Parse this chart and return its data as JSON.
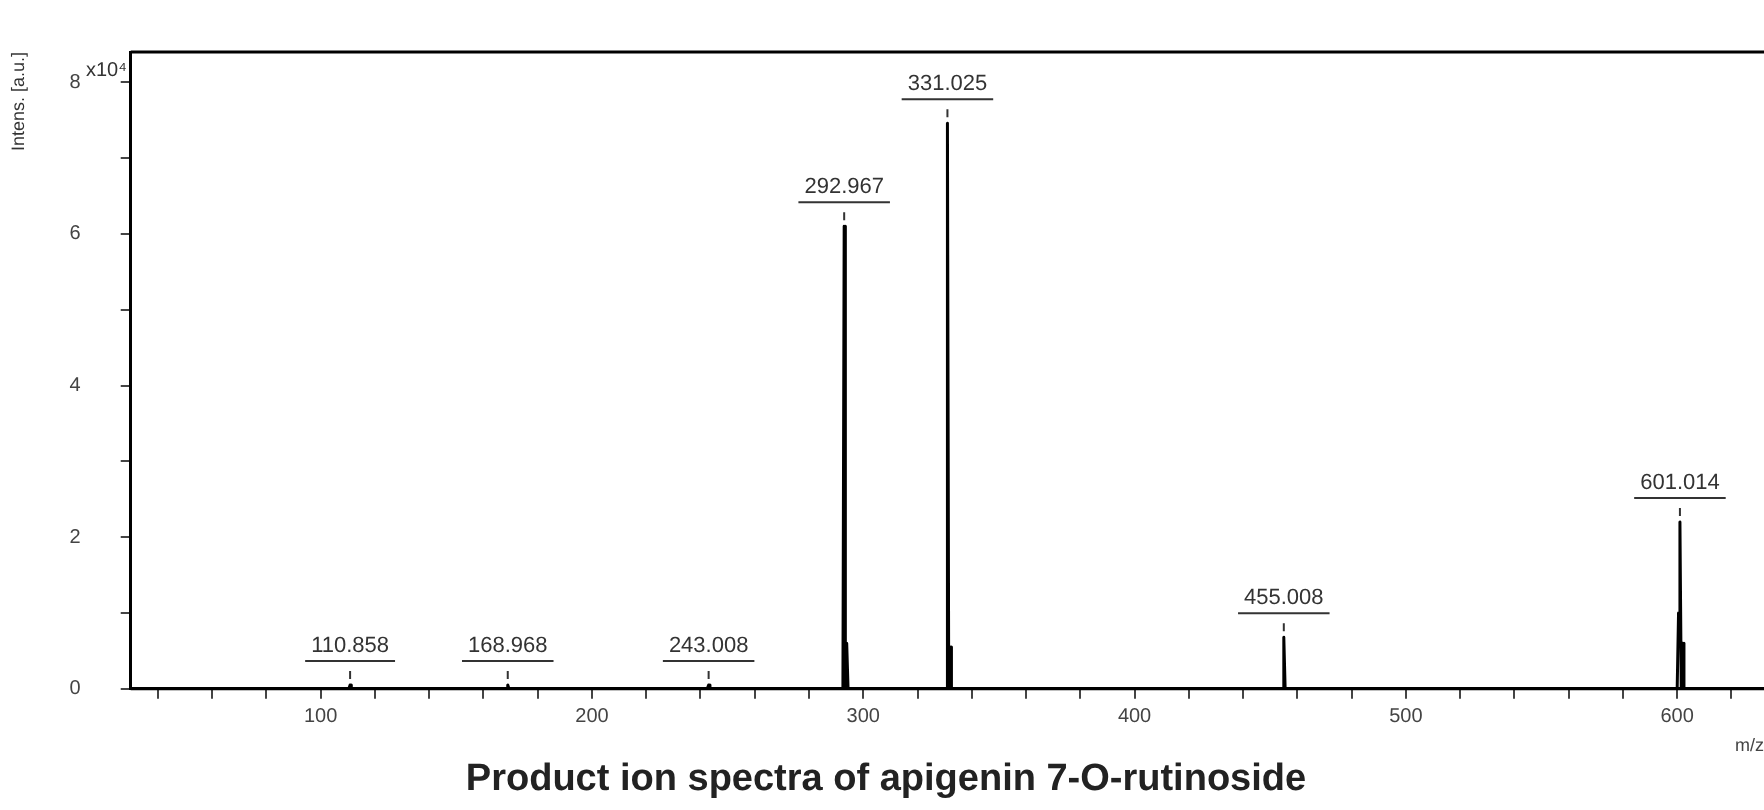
{
  "chart_data": {
    "type": "line",
    "title": "Product ion spectra of apigenin 7-O-rutinoside",
    "xlabel": "m/z",
    "ylabel": "Intens. [a.u.]",
    "x": [
      30,
      110.4,
      110.858,
      111.3,
      168.5,
      168.968,
      169.4,
      242.5,
      243.008,
      243.5,
      292.5,
      292.967,
      293.4,
      293.9,
      294.4,
      330.5,
      331.025,
      331.5,
      332,
      332.5,
      454.5,
      455.008,
      455.5,
      600,
      600.5,
      601.014,
      601.5,
      602,
      602.5,
      632
    ],
    "series": [
      {
        "color": "#000000",
        "values": [
          0,
          0,
          0.05,
          0,
          0,
          0.05,
          0,
          0,
          0.05,
          0,
          0,
          6.1,
          0,
          0.6,
          0,
          0,
          7.46,
          0,
          0.55,
          0,
          0,
          0.68,
          0,
          0,
          1,
          2.2,
          0,
          0.6,
          0,
          0
        ]
      }
    ],
    "xlim": [
      30,
      632
    ],
    "xticks": [
      {
        "value": 40,
        "label": null
      },
      {
        "value": 60,
        "label": null
      },
      {
        "value": 80,
        "label": null
      },
      100,
      {
        "value": 120,
        "label": null
      },
      {
        "value": 140,
        "label": null
      },
      {
        "value": 160,
        "label": null
      },
      {
        "value": 180,
        "label": null
      },
      200,
      {
        "value": 220,
        "label": null
      },
      {
        "value": 240,
        "label": null
      },
      {
        "value": 260,
        "label": null
      },
      {
        "value": 280,
        "label": null
      },
      300,
      {
        "value": 320,
        "label": null
      },
      {
        "value": 340,
        "label": null
      },
      {
        "value": 360,
        "label": null
      },
      {
        "value": 380,
        "label": null
      },
      400,
      {
        "value": 420,
        "label": null
      },
      {
        "value": 440,
        "label": null
      },
      {
        "value": 460,
        "label": null
      },
      {
        "value": 480,
        "label": null
      },
      500,
      {
        "value": 520,
        "label": null
      },
      {
        "value": 540,
        "label": null
      },
      {
        "value": 560,
        "label": null
      },
      {
        "value": 580,
        "label": null
      },
      600,
      {
        "value": 620,
        "label": null
      }
    ],
    "ylim": [
      0,
      8.4
    ],
    "yticks": [
      0,
      {
        "value": 1,
        "label": null
      },
      2,
      {
        "value": 3,
        "label": null
      },
      4,
      {
        "value": 5,
        "label": null
      },
      6,
      {
        "value": 7,
        "label": null
      },
      8
    ],
    "annotations": [
      "x10⁴",
      {
        "text": "110.858",
        "x": 110.858,
        "y": 0.05
      },
      {
        "text": "168.968",
        "x": 168.968,
        "y": 0.05
      },
      {
        "text": "243.008",
        "x": 243.008,
        "y": 0.05
      },
      {
        "text": "292.967",
        "x": 292.967,
        "y": 6.1
      },
      {
        "text": "331.025",
        "x": 331.025,
        "y": 7.46
      },
      {
        "text": "455.008",
        "x": 455.008,
        "y": 0.68
      },
      {
        "text": "601.014",
        "x": 601.014,
        "y": 2.2
      }
    ],
    "grid": false,
    "legend": false,
    "marker": "none",
    "line_style": "solid"
  }
}
